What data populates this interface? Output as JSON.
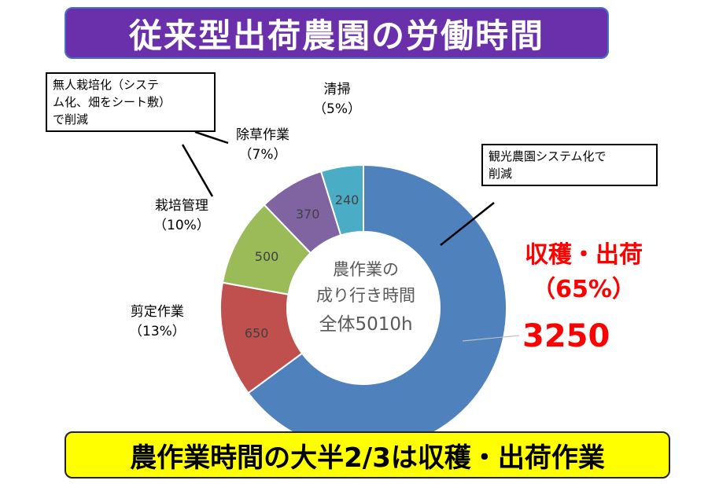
{
  "title": "従来型出荷農園の労働時間",
  "bottom_text": "農作業時間の大半2/3は収穫・出荷作業",
  "center": {
    "line1": "農作業の",
    "line2": "成り行き時間",
    "total": "全体5010h"
  },
  "callouts": {
    "left": [
      "無人栽培化（システ",
      "ム化、畑をシート敷）",
      "で削減"
    ],
    "right": [
      "観光農園システム化で",
      "削減"
    ]
  },
  "chart_data": {
    "type": "donut",
    "title": "従来型出荷農園の労働時間",
    "total_label": "全体5010h",
    "categories": [
      "収穫・出荷",
      "剪定作業",
      "栽培管理",
      "除草作業",
      "清掃"
    ],
    "values": [
      3250,
      650,
      500,
      370,
      240
    ],
    "percent_labels": [
      "（65%）",
      "（13%）",
      "（10%）",
      "（7%）",
      "（5%）"
    ],
    "value_labels": [
      "3250",
      "650",
      "500",
      "370",
      "240"
    ],
    "colors": [
      "#4f81bd",
      "#c0504d",
      "#9bbb59",
      "#8064a2",
      "#4bacc6"
    ]
  }
}
